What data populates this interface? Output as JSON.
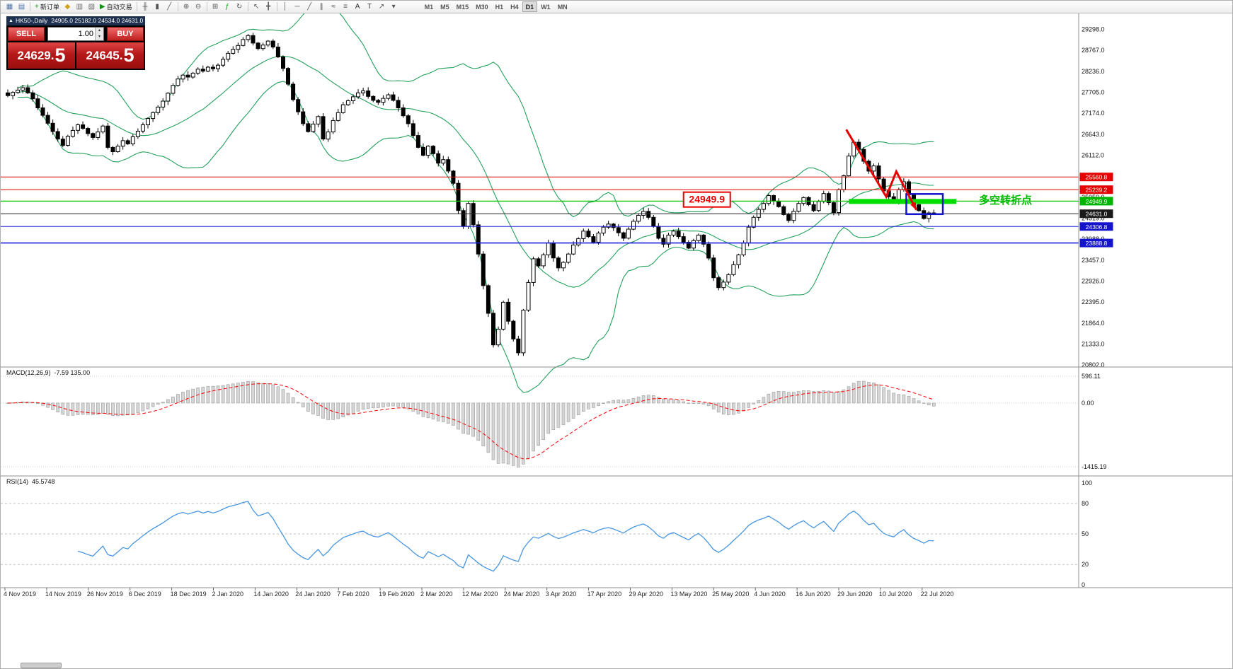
{
  "toolbar": {
    "buttons": [
      {
        "name": "new-chart-button",
        "glyph_name": "new-chart-icon",
        "glyph": "▦",
        "color": "#4a6fa5"
      },
      {
        "name": "chart-profiles-button",
        "glyph_name": "chart-profiles-icon",
        "glyph": "▤",
        "color": "#4a6fa5"
      },
      {
        "sep": true
      },
      {
        "name": "new-order-button",
        "glyph_name": "new-order-plus-icon",
        "glyph": "+",
        "color": "#149414",
        "label": "新订单"
      },
      {
        "name": "market-watch-button",
        "glyph_name": "market-watch-icon",
        "glyph": "◆",
        "color": "#d4a017"
      },
      {
        "name": "data-window-button",
        "glyph_name": "data-window-icon",
        "glyph": "▥",
        "color": "#6a6a6a"
      },
      {
        "name": "navigator-button",
        "glyph_name": "navigator-icon",
        "glyph": "▧",
        "color": "#6a6a6a"
      },
      {
        "name": "auto-trading-button",
        "glyph_name": "auto-trading-play-icon",
        "glyph": "▶",
        "color": "#149414",
        "label": "自动交易"
      },
      {
        "sep": true
      },
      {
        "name": "bar-chart-button",
        "glyph_name": "bar-chart-icon",
        "glyph": "╫",
        "color": "#555555"
      },
      {
        "name": "candlestick-chart-button",
        "glyph_name": "candlestick-icon",
        "glyph": "▮",
        "color": "#555555"
      },
      {
        "name": "line-chart-button",
        "glyph_name": "line-chart-icon",
        "glyph": "╱",
        "color": "#555555"
      },
      {
        "sep": true
      },
      {
        "name": "zoom-in-button",
        "glyph_name": "zoom-in-icon",
        "glyph": "⊕",
        "color": "#555555"
      },
      {
        "name": "zoom-out-button",
        "glyph_name": "zoom-out-icon",
        "glyph": "⊖",
        "color": "#555555"
      },
      {
        "sep": true
      },
      {
        "name": "tile-windows-button",
        "glyph_name": "tile-windows-icon",
        "glyph": "⊞",
        "color": "#555555"
      },
      {
        "name": "indicators-button",
        "glyph_name": "indicators-icon",
        "glyph": "ƒ",
        "color": "#149414"
      },
      {
        "name": "templates-button",
        "glyph_name": "templates-icon",
        "glyph": "↻",
        "color": "#555555"
      },
      {
        "sep": true
      },
      {
        "name": "cursor-button",
        "glyph_name": "cursor-icon",
        "glyph": "↖",
        "color": "#555555"
      },
      {
        "name": "crosshair-button",
        "glyph_name": "crosshair-icon",
        "glyph": "╋",
        "color": "#555555"
      },
      {
        "sep": true
      },
      {
        "name": "vertical-line-button",
        "glyph_name": "vertical-line-icon",
        "glyph": "│",
        "color": "#555555"
      },
      {
        "name": "horizontal-line-button",
        "glyph_name": "horizontal-line-icon",
        "glyph": "─",
        "color": "#555555"
      },
      {
        "name": "trendline-button",
        "glyph_name": "trendline-icon",
        "glyph": "╱",
        "color": "#555555"
      },
      {
        "name": "channel-button",
        "glyph_name": "channel-icon",
        "glyph": "∥",
        "color": "#555555"
      },
      {
        "name": "fibonacci-button",
        "glyph_name": "fibonacci-icon",
        "glyph": "≈",
        "color": "#555555"
      },
      {
        "name": "grid-button",
        "glyph_name": "grid-icon",
        "glyph": "≡",
        "color": "#555555"
      },
      {
        "name": "text-button",
        "glyph_name": "text-icon",
        "glyph": "A",
        "color": "#333333"
      },
      {
        "name": "label-button",
        "glyph_name": "label-icon",
        "glyph": "T",
        "color": "#333333"
      },
      {
        "name": "arrows-button",
        "glyph_name": "arrows-icon",
        "glyph": "↗",
        "color": "#555555"
      },
      {
        "name": "objects-dropdown-button",
        "glyph_name": "chevron-down-icon",
        "glyph": "▾",
        "color": "#555555"
      }
    ],
    "timeframes": [
      "M1",
      "M5",
      "M15",
      "M30",
      "H1",
      "H4",
      "D1",
      "W1",
      "MN"
    ],
    "active_timeframe": "D1"
  },
  "trade_panel": {
    "collapse_icon": "▲",
    "symbol": "HK50-,Daily",
    "ohlc": "24905.0 25182.0 24534.0 24631.0",
    "sell_label": "SELL",
    "buy_label": "BUY",
    "volume": "1.00",
    "spin_up": "▴",
    "spin_down": "▾",
    "sell_price_main": "24629.",
    "sell_price_big": "5",
    "buy_price_main": "24645.",
    "buy_price_big": "5"
  },
  "macd": {
    "name": "MACD(12,26,9)",
    "values": "-7.59 135.00",
    "scale": [
      {
        "text": "596.11",
        "value": 596.11
      },
      {
        "text": "0.00",
        "value": 0
      },
      {
        "text": "-1415.19",
        "value": -1415.19
      }
    ]
  },
  "rsi": {
    "name": "RSI(14)",
    "values": "45.5748",
    "scale": [
      {
        "text": "100",
        "value": 100,
        "line": false
      },
      {
        "text": "80",
        "value": 80,
        "line": true
      },
      {
        "text": "50",
        "value": 50,
        "line": true
      },
      {
        "text": "20",
        "value": 20,
        "line": true
      },
      {
        "text": "0",
        "value": 0,
        "line": false
      }
    ]
  },
  "chart_data": {
    "type": "candlestick",
    "symbol": "HK50-",
    "timeframe": "Daily",
    "indicators": [
      "Bollinger Bands(20,2)",
      "MACD(12,26,9)",
      "RSI(14)"
    ],
    "ylim": [
      20750,
      29700
    ],
    "price_axis_ticks": [
      29298.0,
      28767.0,
      28236.0,
      27705.0,
      27174.0,
      26643.0,
      26112.0,
      25581.0,
      25050.0,
      24519.0,
      23988.0,
      23457.0,
      22926.0,
      22395.0,
      21864.0,
      21333.0,
      20802.0
    ],
    "x_ticks": [
      "4 Nov 2019",
      "14 Nov 2019",
      "26 Nov 2019",
      "6 Dec 2019",
      "18 Dec 2019",
      "2 Jan 2020",
      "14 Jan 2020",
      "24 Jan 2020",
      "7 Feb 2020",
      "19 Feb 2020",
      "2 Mar 2020",
      "12 Mar 2020",
      "24 Mar 2020",
      "3 Apr 2020",
      "17 Apr 2020",
      "29 Apr 2020",
      "13 May 2020",
      "25 May 2020",
      "4 Jun 2020",
      "16 Jun 2020",
      "29 Jun 2020",
      "10 Jul 2020",
      "22 Jul 2020"
    ],
    "closes": [
      27620,
      27700,
      27760,
      27820,
      27690,
      27540,
      27310,
      27120,
      26920,
      26710,
      26520,
      26360,
      26590,
      26740,
      26880,
      26790,
      26660,
      26560,
      26700,
      26850,
      26310,
      26200,
      26340,
      26480,
      26400,
      26580,
      26720,
      26880,
      27040,
      27190,
      27330,
      27480,
      27680,
      27880,
      28040,
      28140,
      28090,
      28190,
      28290,
      28240,
      28340,
      28300,
      28390,
      28540,
      28690,
      28790,
      28890,
      29040,
      29140,
      28950,
      28810,
      28900,
      29000,
      28850,
      28600,
      28310,
      27910,
      27520,
      27210,
      26910,
      26710,
      26900,
      27090,
      26520,
      26700,
      26990,
      27190,
      27390,
      27490,
      27590,
      27690,
      27740,
      27600,
      27500,
      27450,
      27550,
      27640,
      27500,
      27310,
      27110,
      26910,
      26610,
      26310,
      26110,
      26340,
      26150,
      25910,
      26000,
      25710,
      25400,
      24710,
      24310,
      24890,
      24350,
      23610,
      22810,
      22110,
      21310,
      21710,
      22390,
      21910,
      21460,
      21110,
      22190,
      22890,
      23490,
      23310,
      23590,
      23890,
      23510,
      23260,
      23400,
      23610,
      23840,
      24000,
      24190,
      24050,
      23910,
      24140,
      24290,
      24370,
      24280,
      24150,
      24010,
      24240,
      24440,
      24590,
      24690,
      24540,
      24310,
      24010,
      23860,
      24090,
      24190,
      24050,
      23910,
      23760,
      23950,
      24090,
      23860,
      23510,
      23010,
      22760,
      22900,
      23090,
      23340,
      23590,
      23890,
      24290,
      24540,
      24740,
      24890,
      25090,
      24950,
      24810,
      24610,
      24460,
      24690,
      24890,
      25040,
      24860,
      24710,
      24940,
      25140,
      24910,
      24660,
      25240,
      25590,
      26090,
      26440,
      26260,
      25960,
      25710,
      25840,
      25510,
      25210,
      25060,
      24960,
      25240,
      25440,
      25110,
      24860,
      24710,
      24510,
      24650,
      24631
    ],
    "hlines": [
      {
        "price": 25560.8,
        "color": "#e60000",
        "width": 1,
        "badge": "#e60000"
      },
      {
        "price": 25239.2,
        "color": "#e60000",
        "width": 1,
        "badge": "#e60000"
      },
      {
        "price": 24949.9,
        "color": "#00c400",
        "width": 1.4,
        "badge": "#00b400"
      },
      {
        "price": 24631.0,
        "color": "#222222",
        "width": 1,
        "badge": "#1a1a1a"
      },
      {
        "price": 24306.8,
        "color": "#2222dd",
        "width": 1,
        "badge": "#1414cc"
      },
      {
        "price": 23888.8,
        "color": "#2222dd",
        "width": 1.6,
        "badge": "#1414cc"
      }
    ],
    "annotations": {
      "price_label": {
        "text": "24949.9",
        "index": 135,
        "price": 24980
      },
      "turning_point_text": {
        "text": "多空转折点",
        "index": 194,
        "price": 24970,
        "color": "#00bb00"
      },
      "support_zone": {
        "index_start": 168,
        "index_end": 189.5,
        "price": 24940,
        "color": "#00dd00",
        "thickness": 7
      },
      "blue_rect": {
        "index_start": 179.5,
        "index_end": 186.8,
        "price_top": 25130,
        "price_bottom": 24620,
        "color": "#1515d0"
      },
      "red_arrow": {
        "color": "#e80000",
        "points": [
          [
            167.5,
            26760
          ],
          [
            175.5,
            25060
          ],
          [
            177.5,
            25700
          ],
          [
            181.5,
            24730
          ]
        ]
      }
    },
    "colors": {
      "up_candle": "#ffffff",
      "down_candle": "#000000",
      "wick": "#000000",
      "bollinger": "#23a05c",
      "macd_histogram": "#d6d6d6",
      "macd_hist_stroke": "#9a9a9a",
      "macd_signal": "#ff0000",
      "rsi_line": "#4896e0"
    }
  }
}
